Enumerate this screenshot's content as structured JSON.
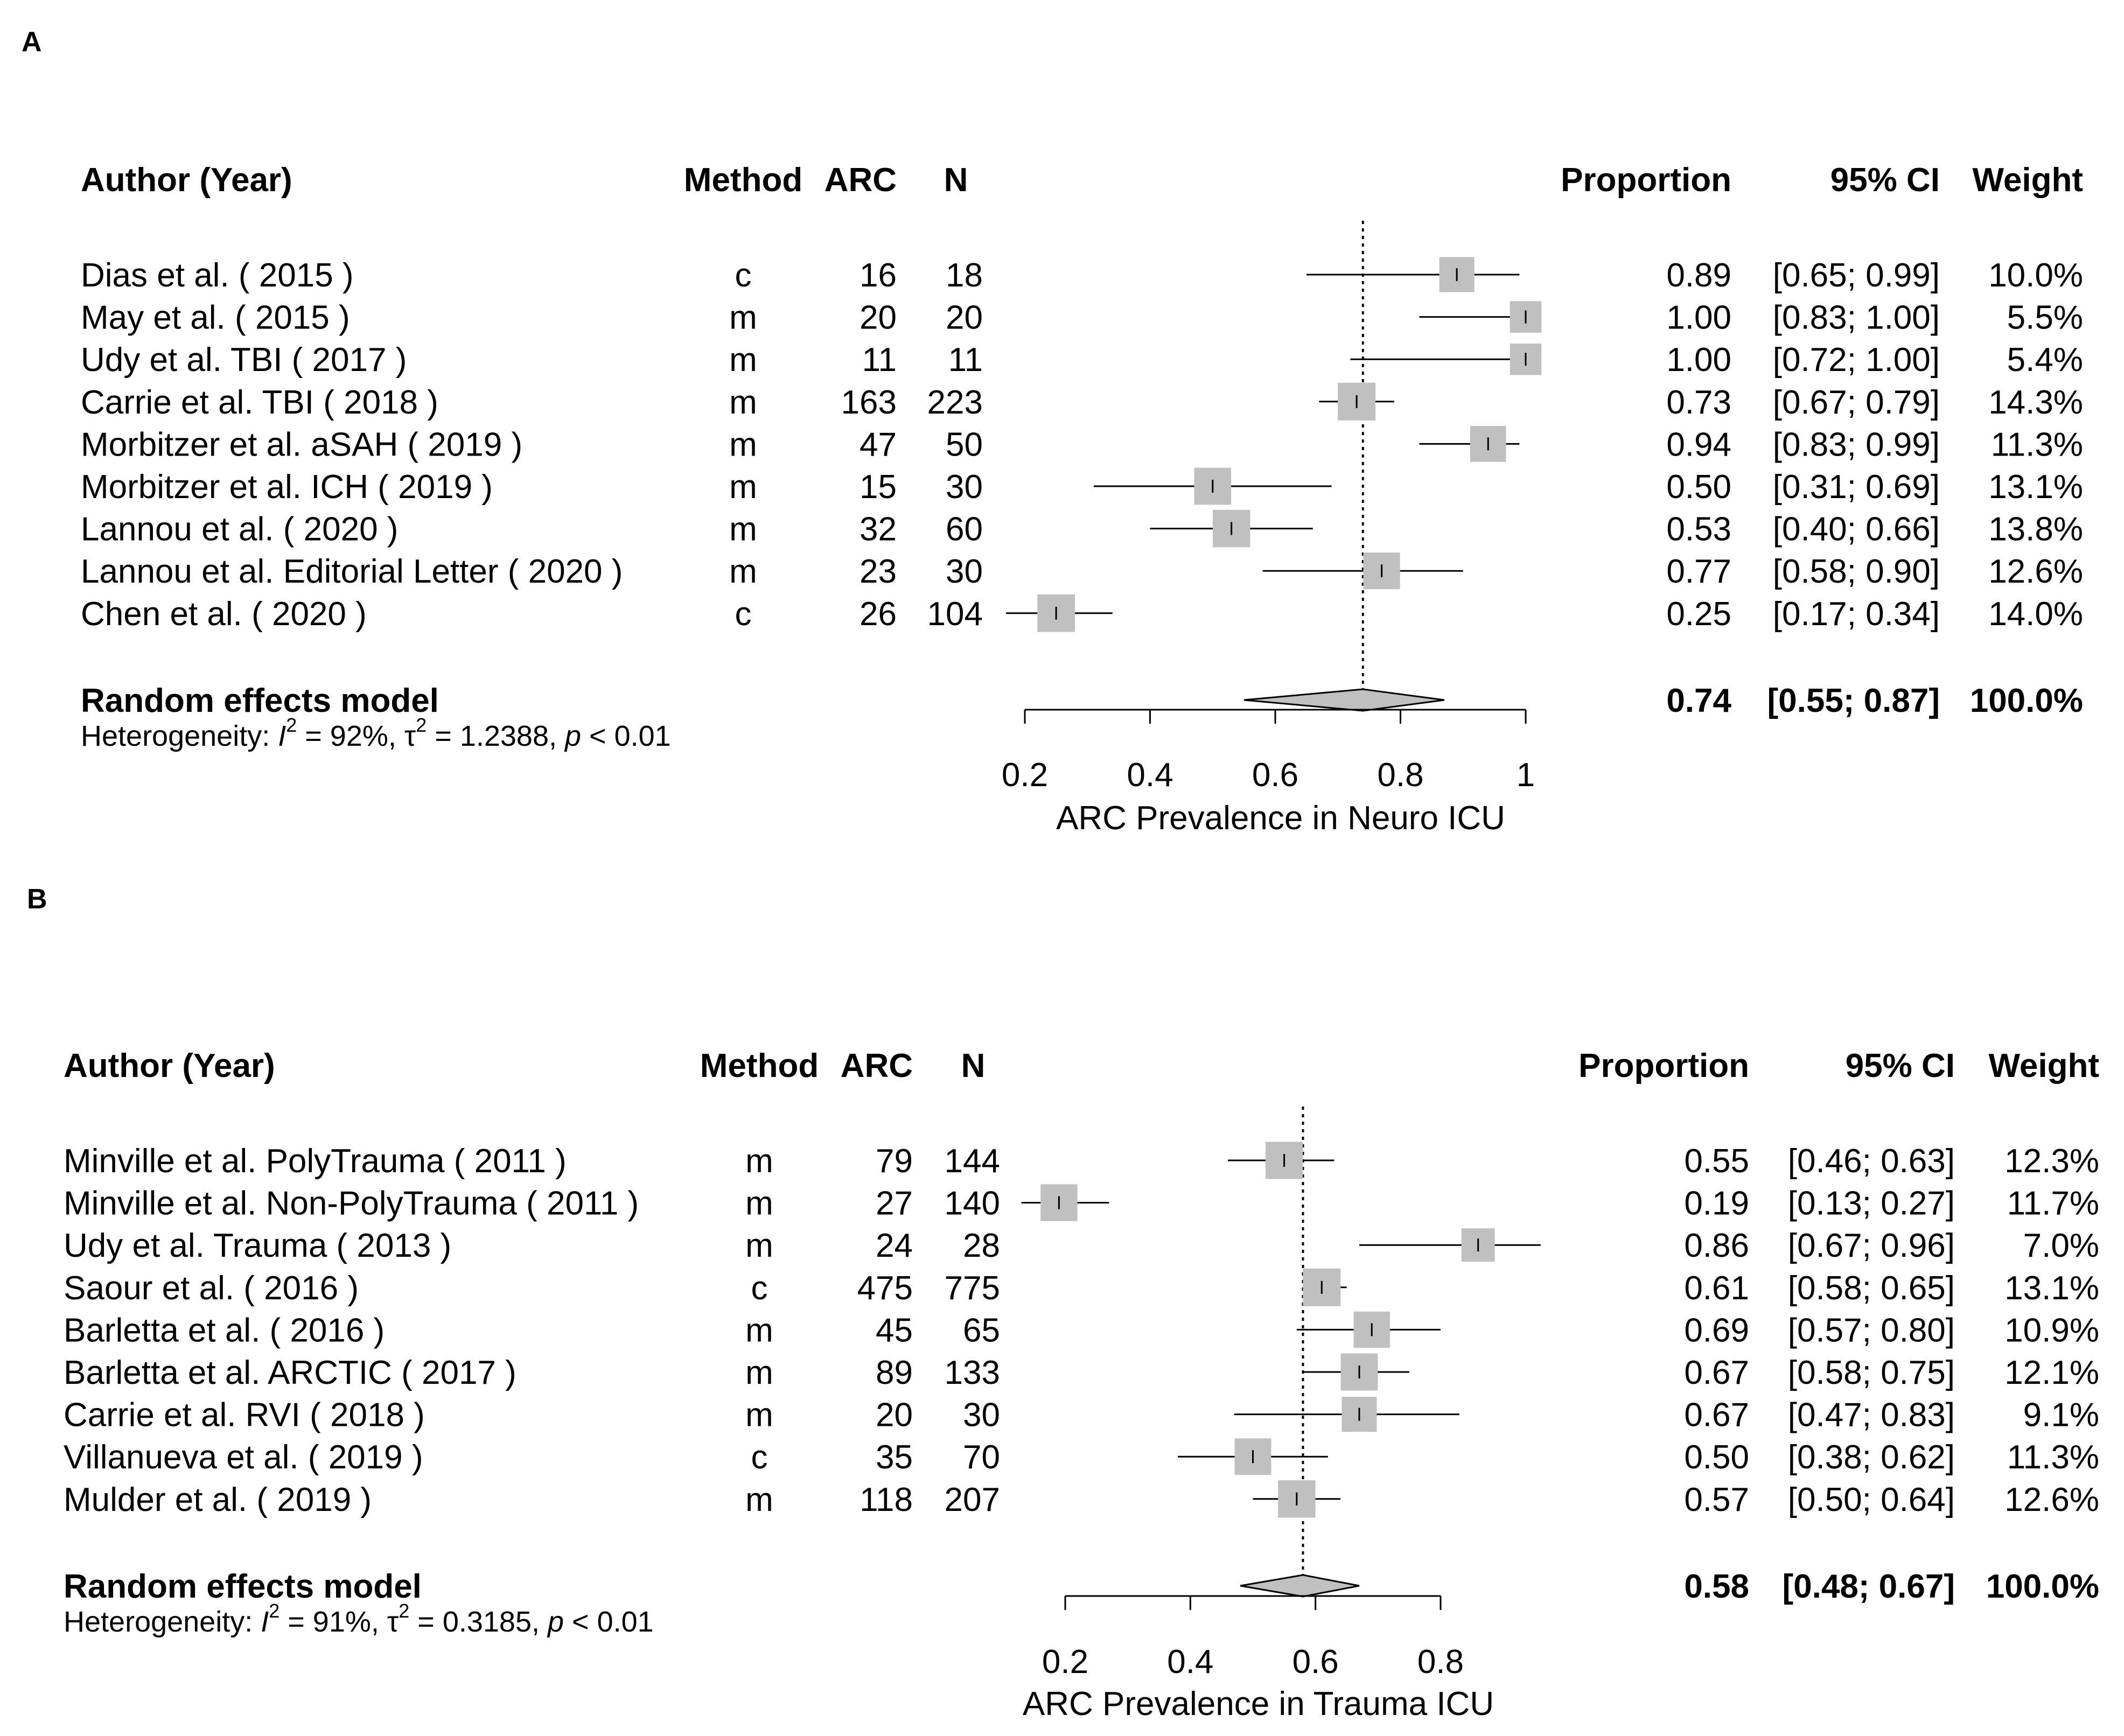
{
  "chart_data": [
    {
      "panel": "A",
      "type": "forest",
      "headers": {
        "author": "Author (Year)",
        "method": "Method",
        "arc": "ARC",
        "n": "N",
        "proportion": "Proportion",
        "ci": "95% CI",
        "weight": "Weight"
      },
      "studies": [
        {
          "label": "Dias et al. ( 2015 )",
          "method": "c",
          "arc": "16",
          "n": "18",
          "est": 0.89,
          "lo": 0.65,
          "hi": 0.99,
          "prop": "0.89",
          "ci": "[0.65; 0.99]",
          "weight": "10.0%",
          "w": 10.0
        },
        {
          "label": "May et al. ( 2015 )",
          "method": "m",
          "arc": "20",
          "n": "20",
          "est": 1.0,
          "lo": 0.83,
          "hi": 1.0,
          "prop": "1.00",
          "ci": "[0.83; 1.00]",
          "weight": "5.5%",
          "w": 5.5
        },
        {
          "label": "Udy et al. TBI ( 2017 )",
          "method": "m",
          "arc": "11",
          "n": "11",
          "est": 1.0,
          "lo": 0.72,
          "hi": 1.0,
          "prop": "1.00",
          "ci": "[0.72; 1.00]",
          "weight": "5.4%",
          "w": 5.4
        },
        {
          "label": "Carrie et al. TBI ( 2018 )",
          "method": "m",
          "arc": "163",
          "n": "223",
          "est": 0.73,
          "lo": 0.67,
          "hi": 0.79,
          "prop": "0.73",
          "ci": "[0.67; 0.79]",
          "weight": "14.3%",
          "w": 14.3
        },
        {
          "label": "Morbitzer et al. aSAH ( 2019 )",
          "method": "m",
          "arc": "47",
          "n": "50",
          "est": 0.94,
          "lo": 0.83,
          "hi": 0.99,
          "prop": "0.94",
          "ci": "[0.83; 0.99]",
          "weight": "11.3%",
          "w": 11.3
        },
        {
          "label": "Morbitzer et al. ICH ( 2019 )",
          "method": "m",
          "arc": "15",
          "n": "30",
          "est": 0.5,
          "lo": 0.31,
          "hi": 0.69,
          "prop": "0.50",
          "ci": "[0.31; 0.69]",
          "weight": "13.1%",
          "w": 13.1
        },
        {
          "label": "Lannou et al. ( 2020 )",
          "method": "m",
          "arc": "32",
          "n": "60",
          "est": 0.53,
          "lo": 0.4,
          "hi": 0.66,
          "prop": "0.53",
          "ci": "[0.40; 0.66]",
          "weight": "13.8%",
          "w": 13.8
        },
        {
          "label": "Lannou et al. Editorial Letter ( 2020 )",
          "method": "m",
          "arc": "23",
          "n": "30",
          "est": 0.77,
          "lo": 0.58,
          "hi": 0.9,
          "prop": "0.77",
          "ci": "[0.58; 0.90]",
          "weight": "12.6%",
          "w": 12.6
        },
        {
          "label": "Chen et al. ( 2020 )",
          "method": "c",
          "arc": "26",
          "n": "104",
          "est": 0.25,
          "lo": 0.17,
          "hi": 0.34,
          "prop": "0.25",
          "ci": "[0.17; 0.34]",
          "weight": "14.0%",
          "w": 14.0
        }
      ],
      "summary": {
        "label": "Random effects model",
        "est": 0.74,
        "lo": 0.55,
        "hi": 0.87,
        "prop": "0.74",
        "ci": "[0.55; 0.87]",
        "weight": "100.0%"
      },
      "heterogeneity": {
        "prefix": "Heterogeneity: ",
        "i2_symbol": "I",
        "i2_value": " = 92%, ",
        "tau2_symbol": "τ",
        "tau2_value": " = 1.2388, ",
        "p_symbol": "p",
        "p_value": " < 0.01",
        "superscript": "2"
      },
      "xaxis": {
        "label": "ARC Prevalence in Neuro ICU",
        "range": [
          0.2,
          1.0
        ],
        "ticks": [
          0.2,
          0.4,
          0.6,
          0.8,
          1.0
        ],
        "tick_labels": [
          "0.2",
          "0.4",
          "0.6",
          "0.8",
          "1"
        ]
      },
      "reference_line": 0.74
    },
    {
      "panel": "B",
      "type": "forest",
      "headers": {
        "author": "Author (Year)",
        "method": "Method",
        "arc": "ARC",
        "n": "N",
        "proportion": "Proportion",
        "ci": "95% CI",
        "weight": "Weight"
      },
      "studies": [
        {
          "label": "Minville et al. PolyTrauma ( 2011 )",
          "method": "m",
          "arc": "79",
          "n": "144",
          "est": 0.55,
          "lo": 0.46,
          "hi": 0.63,
          "prop": "0.55",
          "ci": "[0.46; 0.63]",
          "weight": "12.3%",
          "w": 12.3
        },
        {
          "label": "Minville et al. Non-PolyTrauma ( 2011 )",
          "method": "m",
          "arc": "27",
          "n": "140",
          "est": 0.19,
          "lo": 0.13,
          "hi": 0.27,
          "prop": "0.19",
          "ci": "[0.13; 0.27]",
          "weight": "11.7%",
          "w": 11.7
        },
        {
          "label": "Udy et al. Trauma ( 2013 )",
          "method": "m",
          "arc": "24",
          "n": "28",
          "est": 0.86,
          "lo": 0.67,
          "hi": 0.96,
          "prop": "0.86",
          "ci": "[0.67; 0.96]",
          "weight": "7.0%",
          "w": 7.0
        },
        {
          "label": "Saour et al. ( 2016 )",
          "method": "c",
          "arc": "475",
          "n": "775",
          "est": 0.61,
          "lo": 0.58,
          "hi": 0.65,
          "prop": "0.61",
          "ci": "[0.58; 0.65]",
          "weight": "13.1%",
          "w": 13.1
        },
        {
          "label": "Barletta et al. ( 2016 )",
          "method": "m",
          "arc": "45",
          "n": "65",
          "est": 0.69,
          "lo": 0.57,
          "hi": 0.8,
          "prop": "0.69",
          "ci": "[0.57; 0.80]",
          "weight": "10.9%",
          "w": 10.9
        },
        {
          "label": "Barletta et al. ARCTIC ( 2017 )",
          "method": "m",
          "arc": "89",
          "n": "133",
          "est": 0.67,
          "lo": 0.58,
          "hi": 0.75,
          "prop": "0.67",
          "ci": "[0.58; 0.75]",
          "weight": "12.1%",
          "w": 12.1
        },
        {
          "label": "Carrie et al. RVI ( 2018 )",
          "method": "m",
          "arc": "20",
          "n": "30",
          "est": 0.67,
          "lo": 0.47,
          "hi": 0.83,
          "prop": "0.67",
          "ci": "[0.47; 0.83]",
          "weight": "9.1%",
          "w": 9.1
        },
        {
          "label": "Villanueva et al. ( 2019 )",
          "method": "c",
          "arc": "35",
          "n": "70",
          "est": 0.5,
          "lo": 0.38,
          "hi": 0.62,
          "prop": "0.50",
          "ci": "[0.38; 0.62]",
          "weight": "11.3%",
          "w": 11.3
        },
        {
          "label": "Mulder et al. ( 2019 )",
          "method": "m",
          "arc": "118",
          "n": "207",
          "est": 0.57,
          "lo": 0.5,
          "hi": 0.64,
          "prop": "0.57",
          "ci": "[0.50; 0.64]",
          "weight": "12.6%",
          "w": 12.6
        }
      ],
      "summary": {
        "label": "Random effects model",
        "est": 0.58,
        "lo": 0.48,
        "hi": 0.67,
        "prop": "0.58",
        "ci": "[0.48; 0.67]",
        "weight": "100.0%"
      },
      "heterogeneity": {
        "prefix": "Heterogeneity: ",
        "i2_symbol": "I",
        "i2_value": " = 91%, ",
        "tau2_symbol": "τ",
        "tau2_value": " = 0.3185, ",
        "p_symbol": "p",
        "p_value": " < 0.01",
        "superscript": "2"
      },
      "xaxis": {
        "label": "ARC Prevalence in Trauma ICU",
        "range": [
          0.2,
          0.8
        ],
        "ticks": [
          0.2,
          0.4,
          0.6,
          0.8
        ],
        "tick_labels": [
          "0.2",
          "0.4",
          "0.6",
          "0.8"
        ]
      },
      "reference_line": 0.58
    }
  ],
  "panel_labels": {
    "a": "A",
    "b": "B"
  },
  "colors": {
    "box": "#c0c0c0",
    "diamond": "#c0c0c0",
    "line": "#000000"
  }
}
